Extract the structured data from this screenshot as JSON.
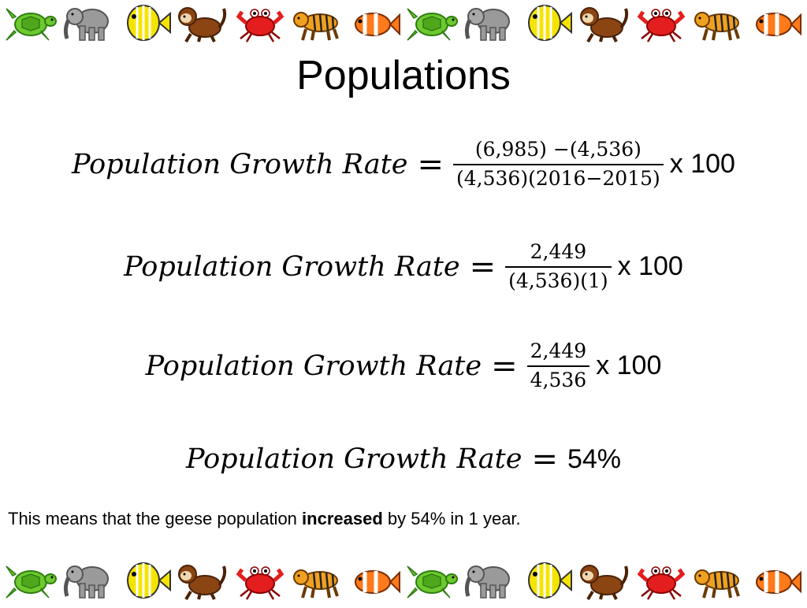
{
  "title": "Populations",
  "border_icons": [
    "turtle-icon",
    "elephant-icon",
    "fish-icon",
    "monkey-icon",
    "crab-icon",
    "tiger-icon",
    "clownfish-icon"
  ],
  "equations": [
    {
      "lhs": "Population Growth Rate",
      "op": "=",
      "numerator": "(6,985) −(4,536)",
      "denominator": "(4,536)(2016−2015)",
      "suffix": "x 100"
    },
    {
      "lhs": "Population Growth Rate",
      "op": "=",
      "numerator": "2,449",
      "denominator": "(4,536)(1)",
      "suffix": "x 100"
    },
    {
      "lhs": "Population Growth Rate",
      "op": "=",
      "numerator": "2,449",
      "denominator": "4,536",
      "suffix": "x 100"
    },
    {
      "lhs": "Population Growth Rate",
      "op": "=",
      "result": "54%"
    }
  ],
  "sentence": {
    "before": "This means that the geese population ",
    "bold": "increased",
    "after": " by 54% in 1 year."
  },
  "colors": {
    "turtle": "#6dc92e",
    "elephant": "#9a9a9a",
    "fish": "#f5e400",
    "monkey": "#8b4513",
    "crab": "#e41e1e",
    "tiger": "#f0a020",
    "clownfish": "#ff7a1a"
  }
}
